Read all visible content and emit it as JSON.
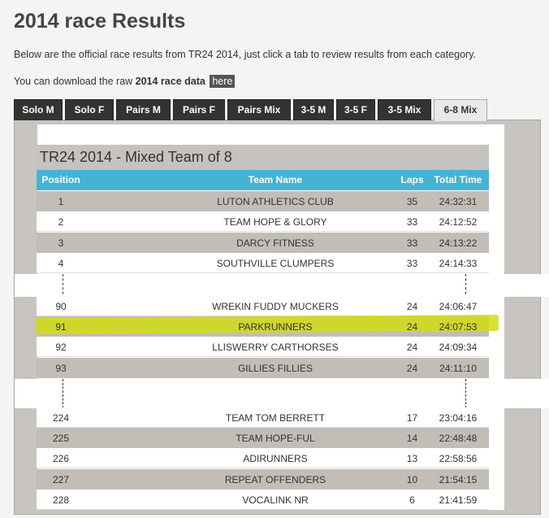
{
  "header": {
    "title": "2014 race Results",
    "intro": "Below are the official race results from TR24 2014, just click a tab to review results from each category.",
    "download_prefix": "You can download the raw ",
    "download_bold": "2014 race data",
    "download_link": "here"
  },
  "tabs": [
    {
      "label": "Solo M"
    },
    {
      "label": "Solo F"
    },
    {
      "label": "Pairs M"
    },
    {
      "label": "Pairs F"
    },
    {
      "label": "Pairs Mix"
    },
    {
      "label": "3-5 M"
    },
    {
      "label": "3-5 F"
    },
    {
      "label": "3-5 Mix"
    },
    {
      "label": "6-8 Mix"
    }
  ],
  "table": {
    "title": "TR24 2014 - Mixed Team of 8",
    "columns": {
      "position": "Position",
      "team": "Team Name",
      "laps": "Laps",
      "time": "Total Time"
    },
    "group1": [
      {
        "pos": "1",
        "team": "LUTON ATHLETICS CLUB",
        "laps": "35",
        "time": "24:32:31"
      },
      {
        "pos": "2",
        "team": "TEAM HOPE & GLORY",
        "laps": "33",
        "time": "24:12:52"
      },
      {
        "pos": "3",
        "team": "DARCY FITNESS",
        "laps": "33",
        "time": "24:13:22"
      },
      {
        "pos": "4",
        "team": "SOUTHVILLE CLUMPERS",
        "laps": "33",
        "time": "24:14:33"
      }
    ],
    "group2": [
      {
        "pos": "90",
        "team": "WREKIN FUDDY MUCKERS",
        "laps": "24",
        "time": "24:06:47"
      },
      {
        "pos": "91",
        "team": "PARKRUNNERS",
        "laps": "24",
        "time": "24:07:53"
      },
      {
        "pos": "92",
        "team": "LLISWERRY CARTHORSES",
        "laps": "24",
        "time": "24:09:34"
      },
      {
        "pos": "93",
        "team": "GILLIES FILLIES",
        "laps": "24",
        "time": "24:11:10"
      }
    ],
    "group3": [
      {
        "pos": "224",
        "team": "TEAM TOM BERRETT",
        "laps": "17",
        "time": "23:04:16"
      },
      {
        "pos": "225",
        "team": "TEAM HOPE-FUL",
        "laps": "14",
        "time": "22:48:48"
      },
      {
        "pos": "226",
        "team": "ADIRUNNERS",
        "laps": "13",
        "time": "22:58:56"
      },
      {
        "pos": "227",
        "team": "REPEAT OFFENDERS",
        "laps": "10",
        "time": "21:54:15"
      },
      {
        "pos": "228",
        "team": "VOCALINK NR",
        "laps": "6",
        "time": "21:41:59"
      }
    ]
  },
  "colors": {
    "header_blue": "#45b4d4",
    "highlight": "#d2dc14",
    "tab_dark": "#333333"
  }
}
